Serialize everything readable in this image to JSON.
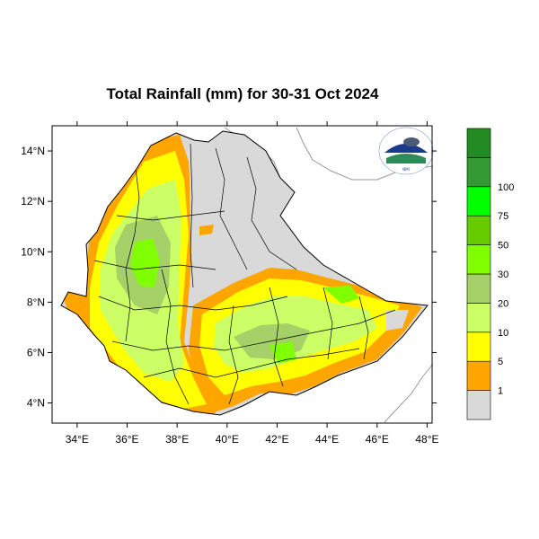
{
  "title": "Total Rainfall (mm) for 30-31 Oct 2024",
  "map": {
    "lon_range": [
      33,
      48.2
    ],
    "lat_range": [
      3.2,
      15
    ],
    "x_ticks": [
      {
        "lon": 34,
        "label": "34°E"
      },
      {
        "lon": 36,
        "label": "36°E"
      },
      {
        "lon": 38,
        "label": "38°E"
      },
      {
        "lon": 40,
        "label": "40°E"
      },
      {
        "lon": 42,
        "label": "42°E"
      },
      {
        "lon": 44,
        "label": "44°E"
      },
      {
        "lon": 46,
        "label": "46°E"
      },
      {
        "lon": 48,
        "label": "48°E"
      }
    ],
    "y_ticks": [
      {
        "lat": 4,
        "label": "4°N"
      },
      {
        "lat": 6,
        "label": "6°N"
      },
      {
        "lat": 8,
        "label": "8°N"
      },
      {
        "lat": 10,
        "label": "10°N"
      },
      {
        "lat": 12,
        "label": "12°N"
      },
      {
        "lat": 14,
        "label": "14°N"
      }
    ],
    "country": "Ethiopia"
  },
  "legend": {
    "bins": [
      {
        "color": "#d9d9d9",
        "label": "1"
      },
      {
        "color": "#ffa500",
        "label": "5"
      },
      {
        "color": "#ffff00",
        "label": "10"
      },
      {
        "color": "#ccff66",
        "label": "20"
      },
      {
        "color": "#a6d068",
        "label": "30"
      },
      {
        "color": "#80ff00",
        "label": "50"
      },
      {
        "color": "#66cc00",
        "label": "75"
      },
      {
        "color": "#00ff00",
        "label": "100"
      },
      {
        "color": "#339933",
        "label": ""
      },
      {
        "color": "#228b22",
        "label": ""
      }
    ]
  },
  "colors": {
    "dry": "#d9d9d9",
    "light": "#ffa500",
    "moderate": "#ffff00",
    "heavy": "#ccff66",
    "heavier": "#a6d068",
    "very_heavy": "#80ff00"
  }
}
